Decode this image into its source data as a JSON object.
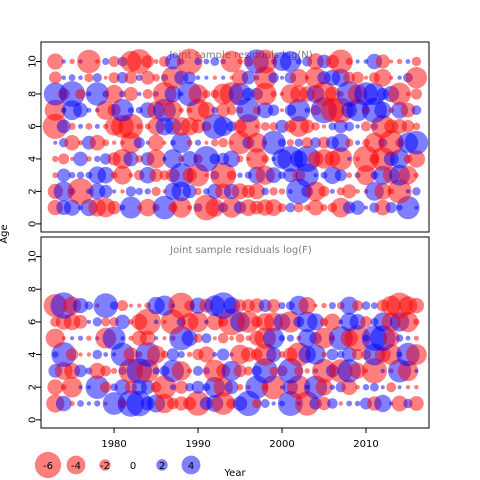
{
  "chart_data": [
    {
      "type": "scatter",
      "title": "Joint sample residuals log(N)",
      "ylabel": "Age",
      "xlim": [
        1971.3,
        2017.5
      ],
      "ylim": [
        -0.5,
        11.2
      ],
      "yticks": [
        0,
        2,
        4,
        6,
        8,
        10
      ],
      "years": [
        1973,
        2016
      ],
      "ages": [
        1,
        10
      ],
      "encoding": {
        "positive": "blue",
        "negative": "red",
        "size": "abs(residual)"
      }
    },
    {
      "type": "scatter",
      "title": "Joint sample residuals log(F)",
      "xlabel": "Year",
      "ylabel": "Age",
      "xlim": [
        1971.3,
        2017.5
      ],
      "ylim": [
        -0.5,
        11.2
      ],
      "xticks": [
        1980,
        1990,
        2000,
        2010
      ],
      "yticks": [
        0,
        2,
        4,
        6,
        8,
        10
      ],
      "years": [
        1973,
        2016
      ],
      "ages": [
        1,
        7
      ],
      "encoding": {
        "positive": "blue",
        "negative": "red",
        "size": "abs(residual)"
      }
    }
  ],
  "legend": {
    "values": [
      -6,
      -4,
      -2,
      0,
      2,
      4
    ],
    "labels": [
      "-6",
      "-4",
      "-2",
      "0",
      "2",
      "4"
    ]
  },
  "colors": {
    "positive": "#0000ff",
    "negative": "#ff0000",
    "frame": "#000000",
    "title": "#7f7f7f"
  }
}
